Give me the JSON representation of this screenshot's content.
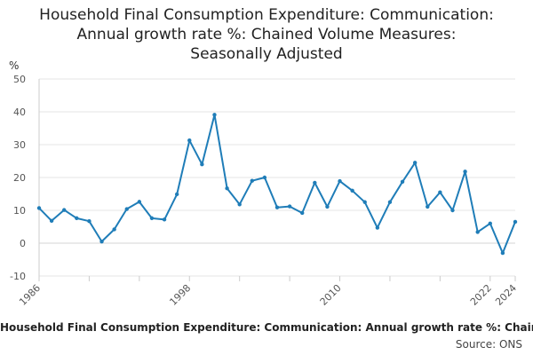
{
  "chart_data": {
    "type": "line",
    "title_lines": [
      "Household Final Consumption Expenditure: Communication:",
      "Annual growth rate %: Chained Volume Measures:",
      "Seasonally Adjusted"
    ],
    "ylabel": "%",
    "ylim": [
      -10,
      50
    ],
    "yticks": [
      -10,
      0,
      10,
      20,
      30,
      40,
      50
    ],
    "xlim": [
      1986,
      2024
    ],
    "xticks": [
      1986,
      1998,
      2010,
      2022,
      2024
    ],
    "series": [
      {
        "name": "Household Final Consumption Expenditure: Communication: Annual growth rate %: Chained Volume Measures: Seasonally Adjusted",
        "color": "#1f7db8",
        "x": [
          1986,
          1987,
          1988,
          1989,
          1990,
          1991,
          1992,
          1993,
          1994,
          1995,
          1996,
          1997,
          1998,
          1999,
          2000,
          2001,
          2002,
          2003,
          2004,
          2005,
          2006,
          2007,
          2008,
          2009,
          2010,
          2011,
          2012,
          2013,
          2014,
          2015,
          2016,
          2017,
          2018,
          2019,
          2020,
          2021,
          2022,
          2023,
          2024
        ],
        "values": [
          10.7,
          6.8,
          10.1,
          7.6,
          6.7,
          0.5,
          4.2,
          10.4,
          12.6,
          7.6,
          7.2,
          14.9,
          31.3,
          24.0,
          39.1,
          16.7,
          11.8,
          19.0,
          20.0,
          10.9,
          11.2,
          9.2,
          18.4,
          11.1,
          18.9,
          16.0,
          12.5,
          4.7,
          12.5,
          18.7,
          24.5,
          11.1,
          15.5,
          10.0,
          21.8,
          3.4,
          6.0,
          -3.0,
          6.5
        ]
      }
    ],
    "legend_text": "Household Final Consumption Expenditure: Communication: Annual growth rate %: Chained Volume Measures: Seasonally Adjusted",
    "source_text": "Source: ONS"
  }
}
